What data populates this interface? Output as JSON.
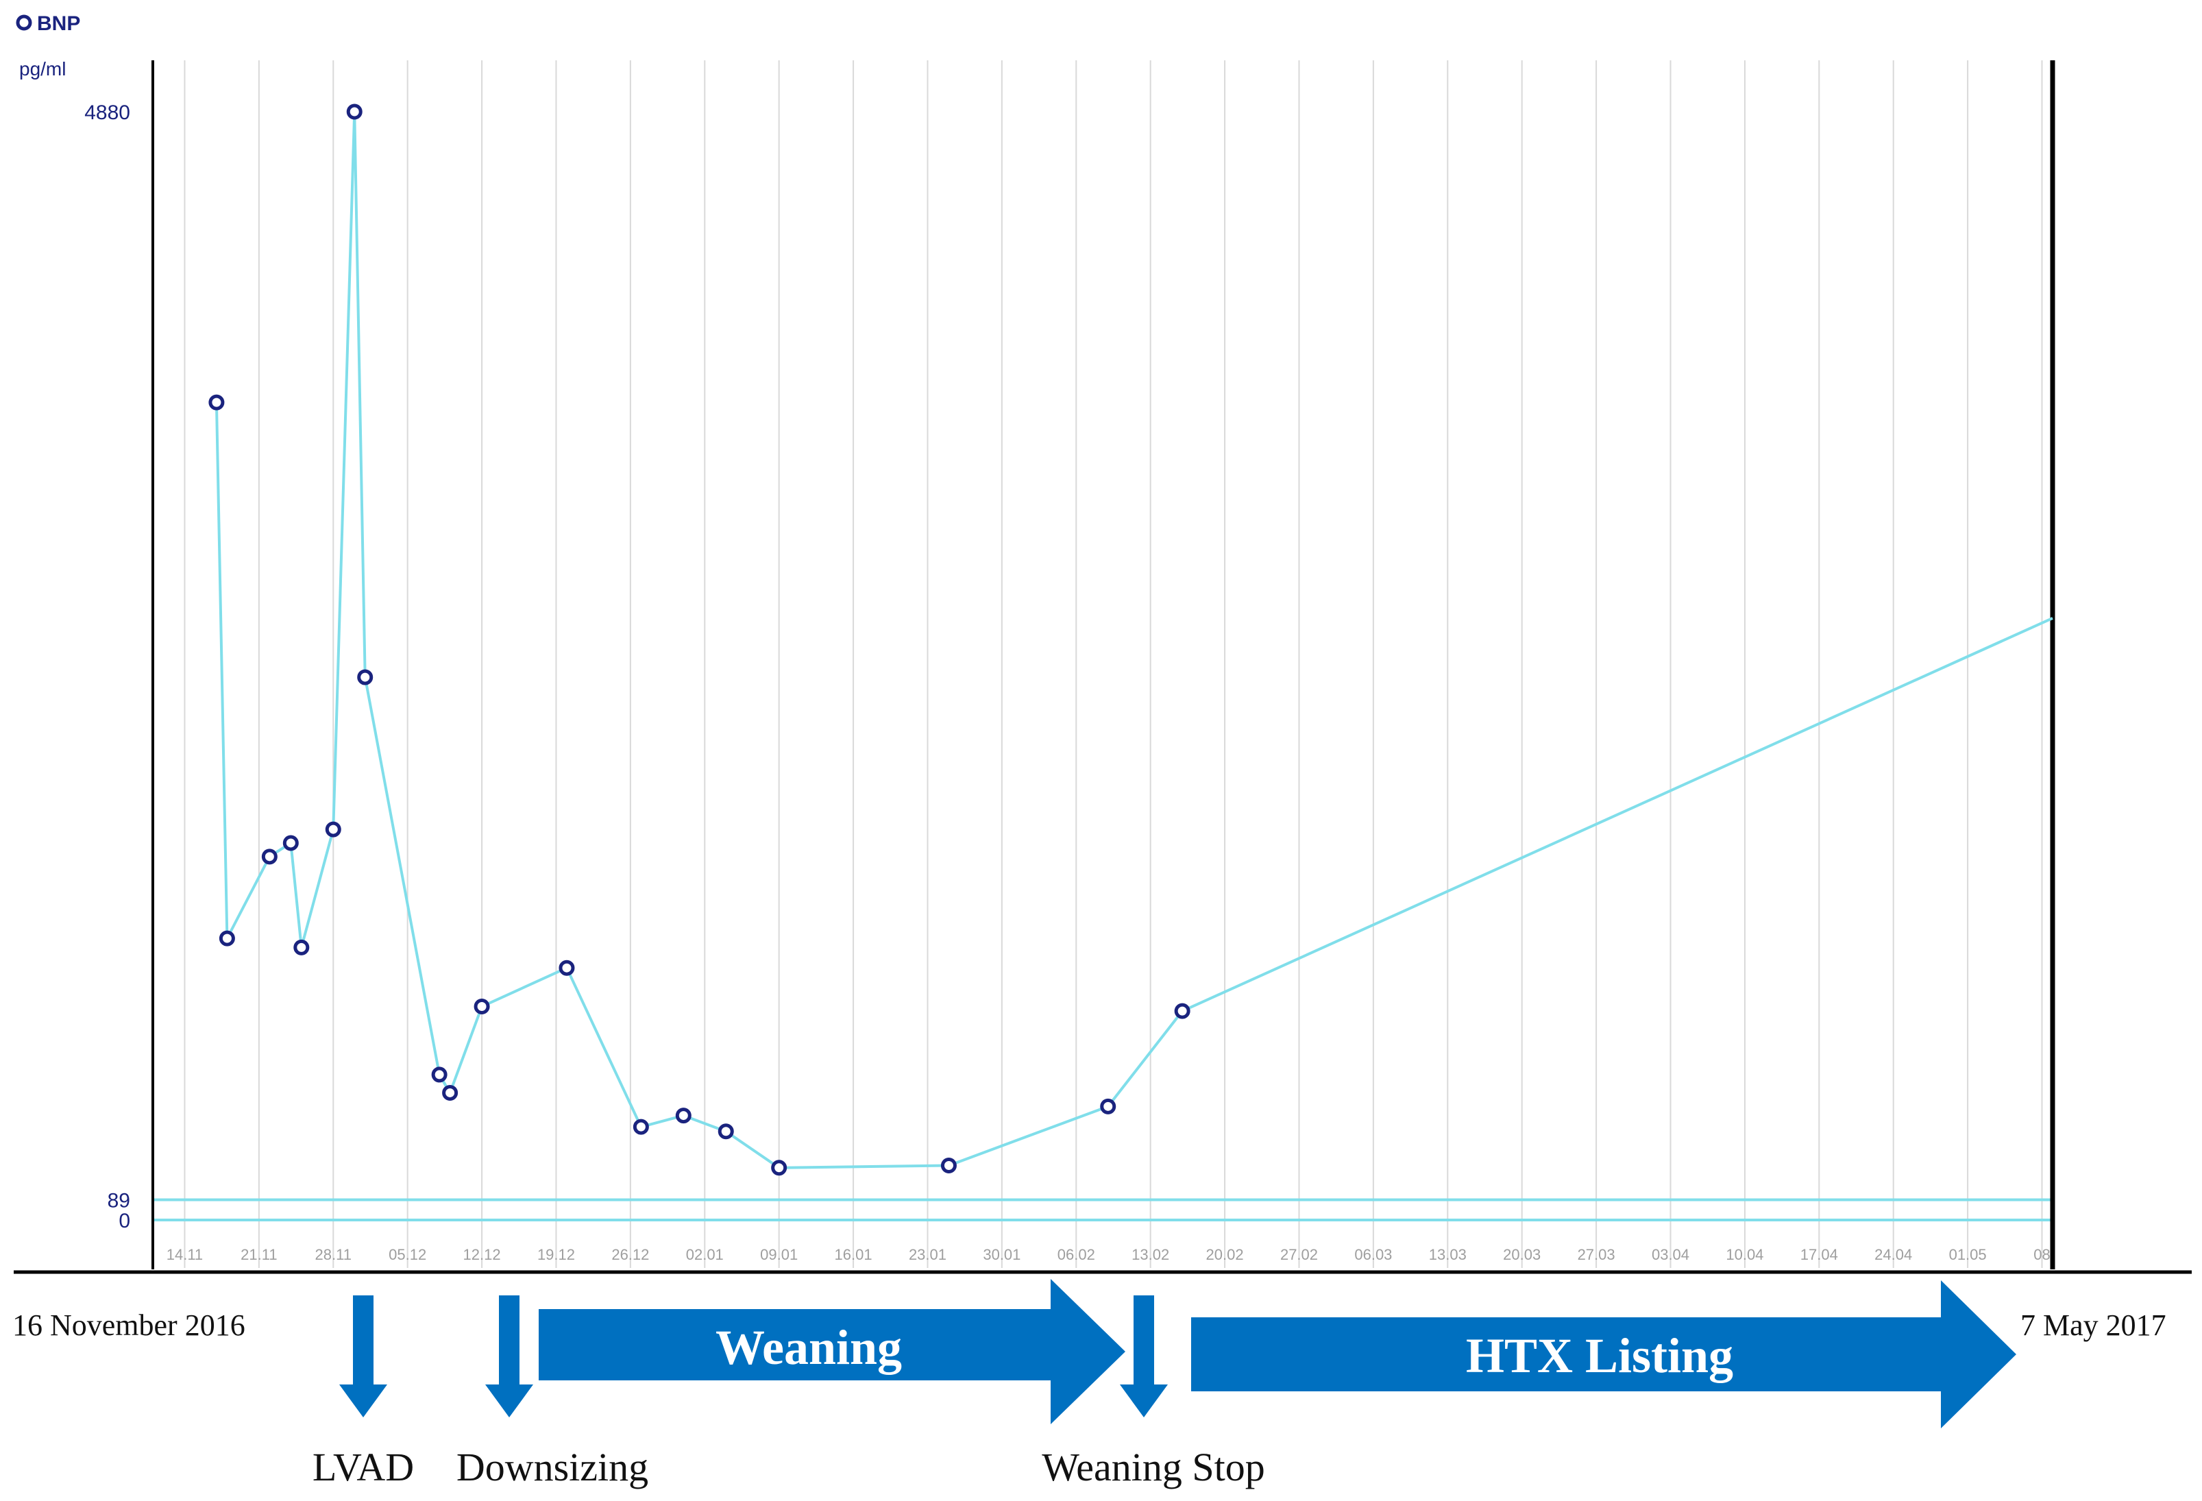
{
  "chart_data": {
    "type": "line",
    "legend": {
      "marker": "open-circle",
      "label": "BNP",
      "placement": "top-left"
    },
    "ylabel": "pg/ml",
    "yticks": [
      {
        "value": 4880,
        "label": "4880"
      },
      {
        "value": 89,
        "label": "89"
      },
      {
        "value": 0,
        "label": "0"
      }
    ],
    "ylim": [
      0,
      4880
    ],
    "reference_lines": [
      89,
      0
    ],
    "xlim": [
      "2016-11-11",
      "2017-05-09"
    ],
    "xticks": [
      {
        "date": "2016-11-14",
        "label": "14.11"
      },
      {
        "date": "2016-11-21",
        "label": "21.11"
      },
      {
        "date": "2016-11-28",
        "label": "28.11"
      },
      {
        "date": "2016-12-05",
        "label": "05.12"
      },
      {
        "date": "2016-12-12",
        "label": "12.12"
      },
      {
        "date": "2016-12-19",
        "label": "19.12"
      },
      {
        "date": "2016-12-26",
        "label": "26.12"
      },
      {
        "date": "2017-01-02",
        "label": "02.01"
      },
      {
        "date": "2017-01-09",
        "label": "09.01"
      },
      {
        "date": "2017-01-16",
        "label": "16.01"
      },
      {
        "date": "2017-01-23",
        "label": "23.01"
      },
      {
        "date": "2017-01-30",
        "label": "30.01"
      },
      {
        "date": "2017-02-06",
        "label": "06.02"
      },
      {
        "date": "2017-02-13",
        "label": "13.02"
      },
      {
        "date": "2017-02-20",
        "label": "20.02"
      },
      {
        "date": "2017-02-27",
        "label": "27.02"
      },
      {
        "date": "2017-03-06",
        "label": "06.03"
      },
      {
        "date": "2017-03-13",
        "label": "13.03"
      },
      {
        "date": "2017-03-20",
        "label": "20.03"
      },
      {
        "date": "2017-03-27",
        "label": "27.03"
      },
      {
        "date": "2017-04-03",
        "label": "03.04"
      },
      {
        "date": "2017-04-10",
        "label": "10.04"
      },
      {
        "date": "2017-04-17",
        "label": "17.04"
      },
      {
        "date": "2017-04-24",
        "label": "24.04"
      },
      {
        "date": "2017-05-01",
        "label": "01.05"
      },
      {
        "date": "2017-05-08",
        "label": "08"
      }
    ],
    "grid": {
      "vertical": true,
      "horizontal": false
    },
    "series": [
      {
        "name": "BNP",
        "color": "#80deea",
        "marker_color": "#1a237e",
        "points": [
          {
            "date": "2016-11-17",
            "value": 3600
          },
          {
            "date": "2016-11-18",
            "value": 1240
          },
          {
            "date": "2016-11-22",
            "value": 1600
          },
          {
            "date": "2016-11-24",
            "value": 1660
          },
          {
            "date": "2016-11-25",
            "value": 1200
          },
          {
            "date": "2016-11-28",
            "value": 1720
          },
          {
            "date": "2016-11-30",
            "value": 4880
          },
          {
            "date": "2016-12-01",
            "value": 2390
          },
          {
            "date": "2016-12-08",
            "value": 640
          },
          {
            "date": "2016-12-09",
            "value": 560
          },
          {
            "date": "2016-12-12",
            "value": 940
          },
          {
            "date": "2016-12-20",
            "value": 1110
          },
          {
            "date": "2016-12-27",
            "value": 410
          },
          {
            "date": "2016-12-31",
            "value": 460
          },
          {
            "date": "2017-01-04",
            "value": 390
          },
          {
            "date": "2017-01-09",
            "value": 230
          },
          {
            "date": "2017-01-25",
            "value": 240
          },
          {
            "date": "2017-02-09",
            "value": 500
          },
          {
            "date": "2017-02-16",
            "value": 920
          }
        ],
        "trend_end": {
          "date": "2017-05-09",
          "value": 2650
        }
      }
    ],
    "annotations": {
      "start_date": "16 November 2016",
      "end_date": "7 May 2017",
      "events": [
        {
          "label": "LVAD",
          "date": "2016-11-28"
        },
        {
          "label": "Downsizing",
          "date": "2016-12-10"
        },
        {
          "label": "Weaning Stop",
          "date": "2017-02-10"
        }
      ],
      "phases": [
        {
          "label": "Weaning",
          "color": "#0070c0"
        },
        {
          "label": "HTX Listing",
          "color": "#0070c0"
        }
      ]
    }
  }
}
